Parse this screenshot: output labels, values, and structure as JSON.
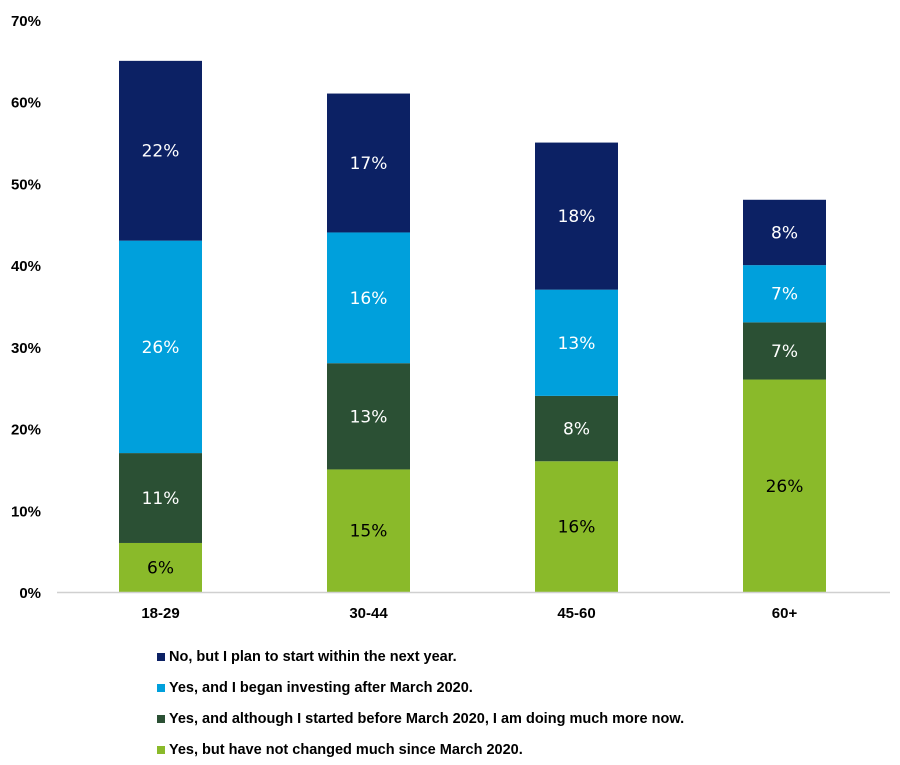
{
  "chart_data": {
    "type": "bar",
    "stacked": true,
    "categories": [
      "18-29",
      "30-44",
      "45-60",
      "60+"
    ],
    "series": [
      {
        "name": "Yes, but have not changed much since March 2020.",
        "values": [
          6,
          15,
          16,
          26
        ],
        "color": "#8aba2a"
      },
      {
        "name": "Yes, and although I started before March 2020, I am doing much more now.",
        "values": [
          11,
          13,
          8,
          7
        ],
        "color": "#2b5034"
      },
      {
        "name": "Yes, and I began investing after March 2020.",
        "values": [
          26,
          16,
          13,
          7
        ],
        "color": "#00a0dc"
      },
      {
        "name": "No, but I plan to start within the next year.",
        "values": [
          22,
          17,
          18,
          8
        ],
        "color": "#0c2164"
      }
    ],
    "yticks": [
      "0%",
      "10%",
      "20%",
      "30%",
      "40%",
      "50%",
      "60%",
      "70%"
    ],
    "ylim": [
      0,
      70
    ],
    "grid": false,
    "legend": "bottom",
    "title": "",
    "xlabel": "",
    "ylabel": ""
  }
}
